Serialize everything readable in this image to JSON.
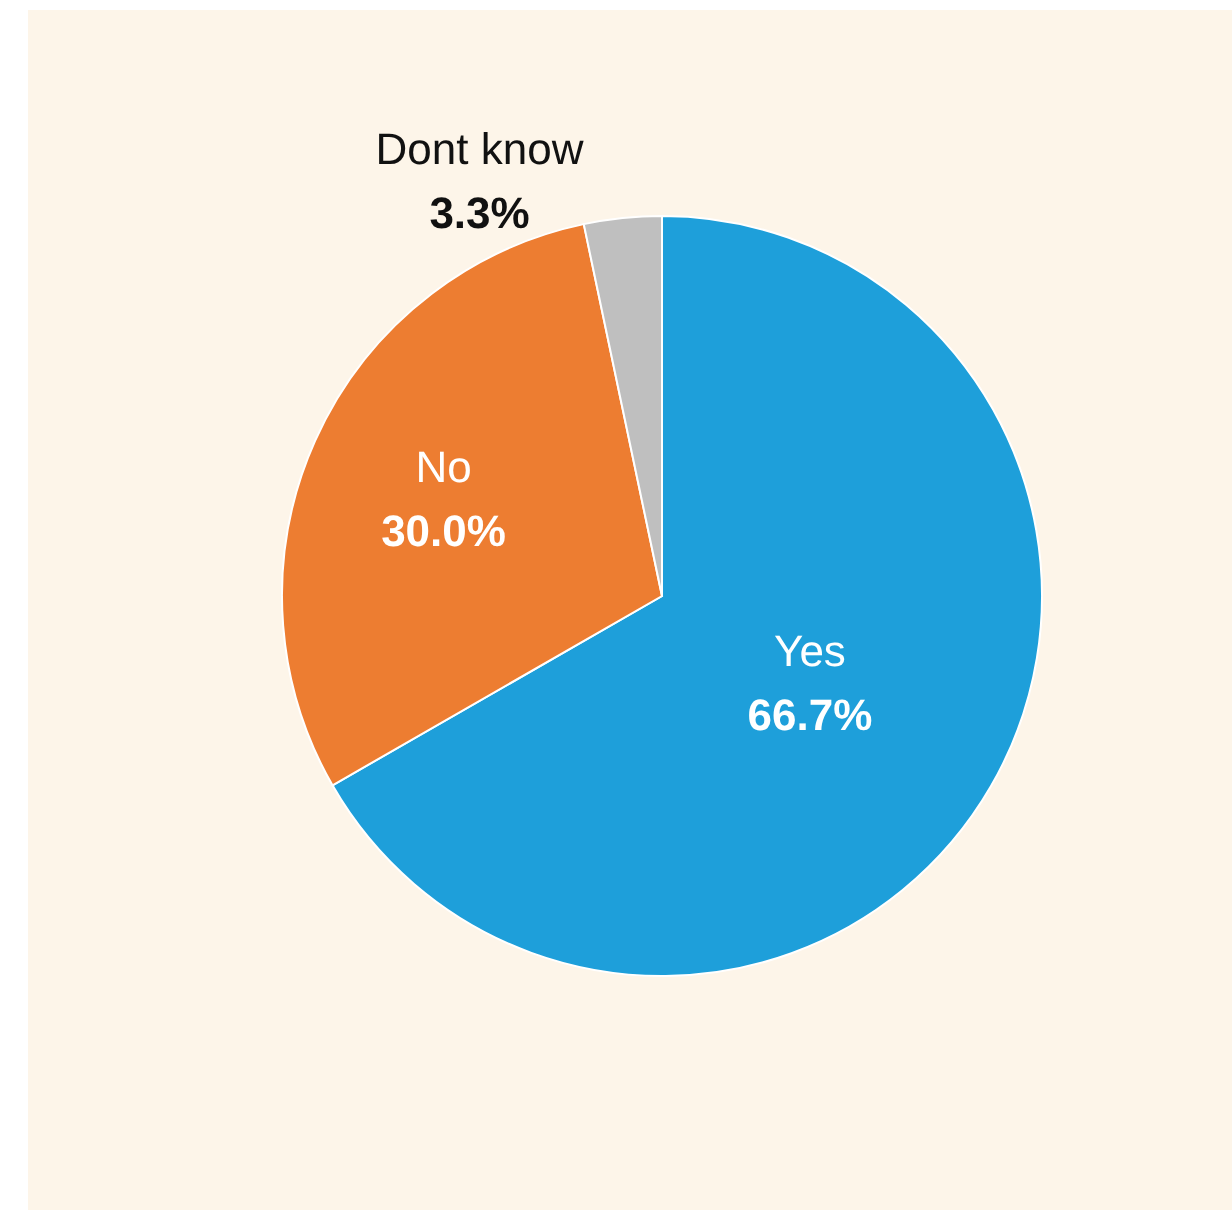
{
  "chart_data": {
    "type": "pie",
    "categories": [
      "Yes",
      "No",
      "Dont know"
    ],
    "values": [
      66.7,
      30.0,
      3.3
    ],
    "colors": [
      "#1e9fda",
      "#ed7d31",
      "#bfbfbf"
    ],
    "value_labels": [
      "66.7%",
      "30.0%",
      "3.3%"
    ]
  }
}
